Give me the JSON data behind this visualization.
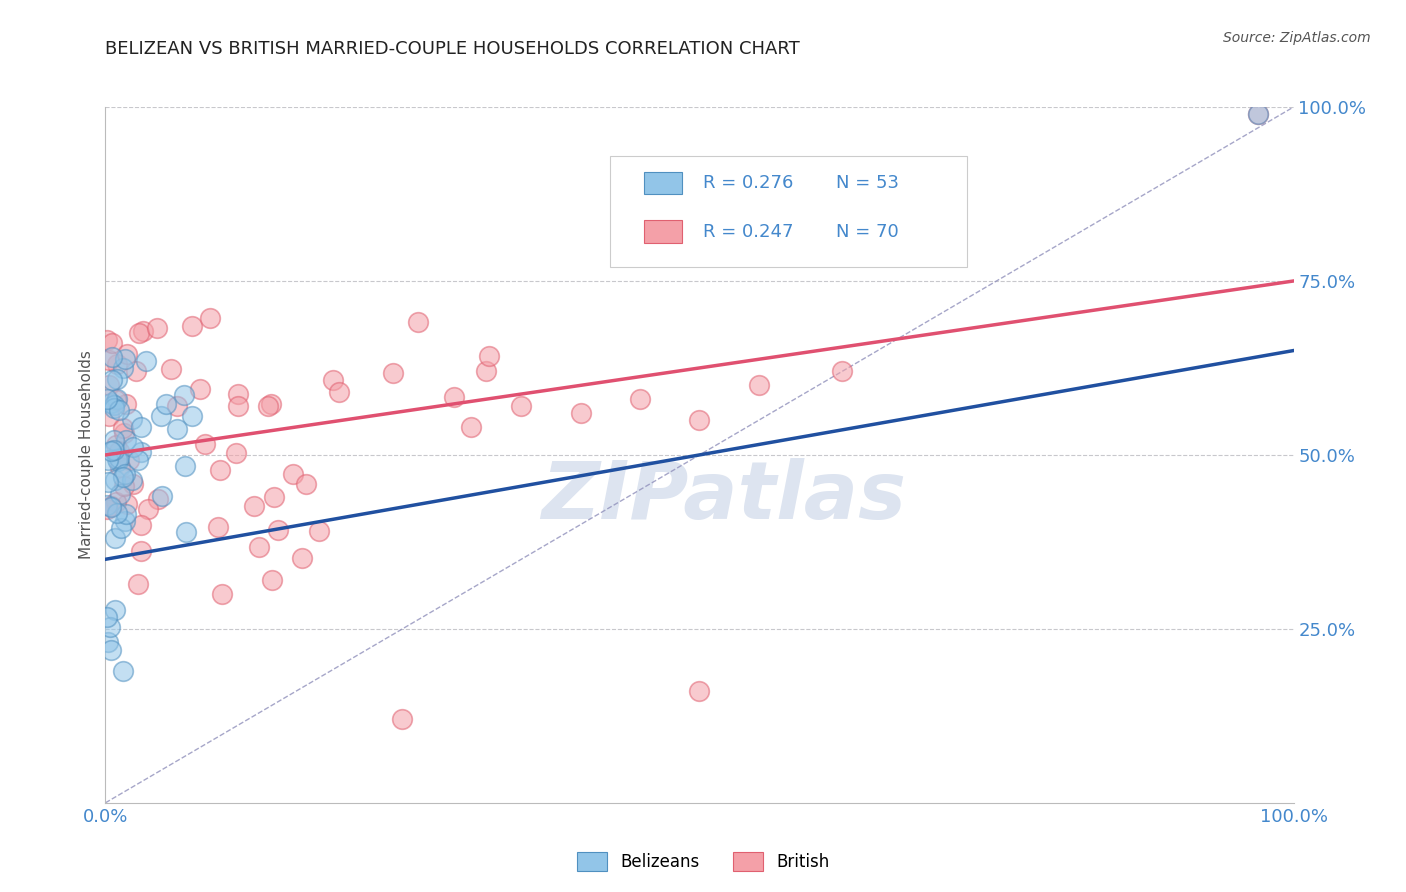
{
  "title": "BELIZEAN VS BRITISH MARRIED-COUPLE HOUSEHOLDS CORRELATION CHART",
  "source": "Source: ZipAtlas.com",
  "ylabel": "Married-couple Households",
  "xlim": [
    0,
    1.0
  ],
  "ylim": [
    0,
    1.0
  ],
  "legend_r_belizean": "R = 0.276",
  "legend_n_belizean": "N = 53",
  "legend_r_british": "R = 0.247",
  "legend_n_british": "N = 70",
  "belizean_color": "#92C5E8",
  "british_color": "#F4A0A8",
  "belizean_edge_color": "#5090C0",
  "british_edge_color": "#E06070",
  "belizean_line_color": "#2050A0",
  "british_line_color": "#E05070",
  "ref_line_color": "#9090BB",
  "background_color": "#ffffff",
  "grid_color": "#C8C8CC",
  "title_color": "#222222",
  "label_color": "#4488CC",
  "watermark": "ZIPatlas",
  "bel_intercept": 0.35,
  "bel_slope": 0.3,
  "brit_intercept": 0.5,
  "brit_slope": 0.25
}
